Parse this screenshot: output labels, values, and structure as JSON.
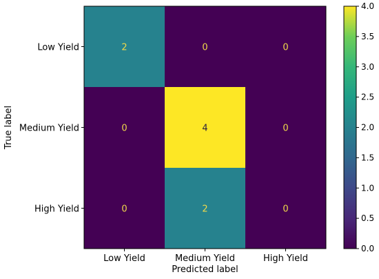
{
  "chart_data": {
    "type": "heatmap",
    "title": "",
    "xlabel": "Predicted label",
    "ylabel": "True label",
    "x_categories": [
      "Low Yield",
      "Medium Yield",
      "High Yield"
    ],
    "y_categories": [
      "Low Yield",
      "Medium Yield",
      "High Yield"
    ],
    "values": [
      [
        2,
        0,
        0
      ],
      [
        0,
        4,
        0
      ],
      [
        0,
        2,
        0
      ]
    ],
    "colormap": "viridis",
    "color_range": [
      0.0,
      4.0
    ],
    "colorbar_ticks": [
      "0.0",
      "0.5",
      "1.0",
      "1.5",
      "2.0",
      "2.5",
      "3.0",
      "3.5",
      "4.0"
    ],
    "text_color_dark": "#2a1f3f",
    "text_color_light": "#f0d94a"
  }
}
